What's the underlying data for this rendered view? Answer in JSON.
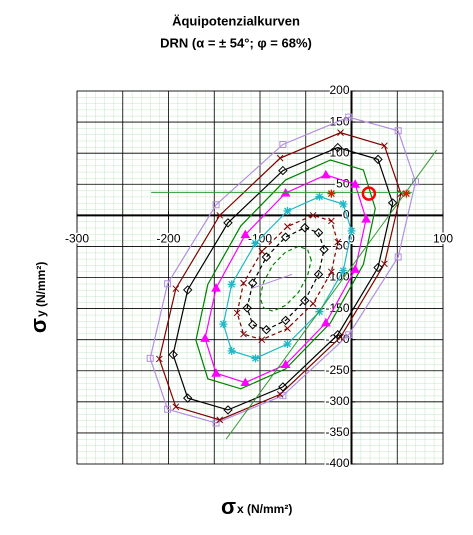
{
  "chart_data": {
    "type": "line",
    "title": "Äquipotenzialkurven",
    "subtitle": "DRN (α = ± 54°; φ = 68%)",
    "xlabel": {
      "symbol": "σ",
      "text": "x (N/mm²)"
    },
    "ylabel": {
      "symbol": "σ",
      "text": "y (N/mm²)"
    },
    "xlim": [
      -300,
      100
    ],
    "ylim": [
      -400,
      200
    ],
    "xticks": [
      -300,
      -200,
      -100,
      0,
      100
    ],
    "yticks": [
      -400,
      -350,
      -300,
      -250,
      -200,
      -150,
      -100,
      -50,
      0,
      50,
      100,
      150,
      200
    ],
    "xgrid": [
      -300,
      -250,
      -200,
      -150,
      -100,
      -50,
      0,
      50,
      100
    ],
    "grid": true,
    "series": [
      {
        "color": "#b48ee0",
        "marker": "square",
        "dashed": false,
        "x": [
          70,
          51,
          -3,
          -75,
          -148,
          -201,
          -220,
          -201,
          -148,
          -75,
          -3,
          51
        ],
        "y": [
          54,
          136,
          158,
          114,
          17,
          -110,
          -230,
          -312,
          -334,
          -290,
          -192,
          -67
        ]
      },
      {
        "color": "#800000",
        "marker": "x",
        "dashed": false,
        "x": [
          54,
          36,
          -12,
          -78,
          -144,
          -192,
          -210,
          -192,
          -144,
          -78,
          -12,
          36
        ],
        "y": [
          35,
          112,
          133,
          92,
          0,
          -118,
          -231,
          -308,
          -329,
          -288,
          -196,
          -78
        ]
      },
      {
        "color": "#000000",
        "marker": "diamond",
        "dashed": false,
        "x": [
          45,
          29,
          -15,
          -75,
          -135,
          -179,
          -195,
          -179,
          -135,
          -75,
          -15,
          29
        ],
        "y": [
          20,
          90,
          109,
          72,
          -12,
          -120,
          -224,
          -294,
          -313,
          -276,
          -192,
          -84
        ]
      },
      {
        "color": "#008000",
        "marker": "none",
        "dashed": false,
        "x": [
          26,
          13,
          -23,
          -72,
          -121,
          -157,
          -170,
          -157,
          -121,
          -72,
          -23,
          13
        ],
        "y": [
          11,
          73,
          89,
          57,
          -17,
          -111,
          -201,
          -263,
          -279,
          -247,
          -173,
          -79
        ]
      },
      {
        "color": "#ff00ff",
        "marker": "triangle",
        "dashed": false,
        "x": [
          16,
          4,
          -28,
          -72,
          -116,
          -148,
          -160,
          -148,
          -116,
          -72,
          -28,
          4
        ],
        "y": [
          -6,
          50,
          65,
          36,
          -31,
          -117,
          -198,
          -254,
          -269,
          -240,
          -173,
          -87
        ]
      },
      {
        "color": "#20b8c8",
        "marker": "star",
        "dashed": false,
        "x": [
          0,
          -9,
          -35,
          -70,
          -105,
          -131,
          -140,
          -131,
          -105,
          -70,
          -35,
          -9
        ],
        "y": [
          -25,
          18,
          30,
          7,
          -45,
          -111,
          -175,
          -218,
          -230,
          -207,
          -155,
          -89
        ]
      },
      {
        "color": "#800000",
        "marker": "x",
        "dashed": true,
        "x": [
          -15,
          -22,
          -42,
          -70,
          -98,
          -118,
          -125,
          -118,
          -98,
          -70,
          -42,
          -22
        ],
        "y": [
          -43,
          -9,
          0,
          -18,
          -58,
          -109,
          -157,
          -191,
          -200,
          -182,
          -142,
          -91
        ]
      },
      {
        "color": "#000000",
        "marker": "diamond",
        "dashed": true,
        "x": [
          -30,
          -36,
          -51,
          -72,
          -93,
          -108,
          -114,
          -108,
          -93,
          -72,
          -51,
          -36
        ],
        "y": [
          -55,
          -28,
          -20,
          -35,
          -67,
          -109,
          -149,
          -176,
          -184,
          -169,
          -137,
          -95
        ]
      },
      {
        "color": "#008000",
        "marker": "none",
        "dashed": true,
        "x": [
          -44,
          -48,
          -58,
          -72,
          -86,
          -96,
          -100,
          -96,
          -86,
          -72,
          -58,
          -48
        ],
        "y": [
          -72,
          -55,
          -50,
          -59,
          -80,
          -107,
          -132,
          -149,
          -154,
          -145,
          -124,
          -97
        ]
      }
    ],
    "lines": [
      {
        "color": "#339933",
        "x": [
          -137,
          93
        ],
        "y": [
          -360,
          105
        ]
      },
      {
        "color": "#339933",
        "x": [
          -219,
          66
        ],
        "y": [
          37,
          37
        ]
      },
      {
        "color": "#b48ee0",
        "x": [
          -110,
          -65
        ],
        "y": [
          -118,
          -95
        ]
      }
    ],
    "points": [
      {
        "color": "#cc2200",
        "marker": "star",
        "x": 60,
        "y": 35
      },
      {
        "color": "#cc2200",
        "marker": "star",
        "x": -22,
        "y": 35
      },
      {
        "color": "#ff0000",
        "marker": "circle",
        "x": 19,
        "y": 35
      }
    ]
  }
}
